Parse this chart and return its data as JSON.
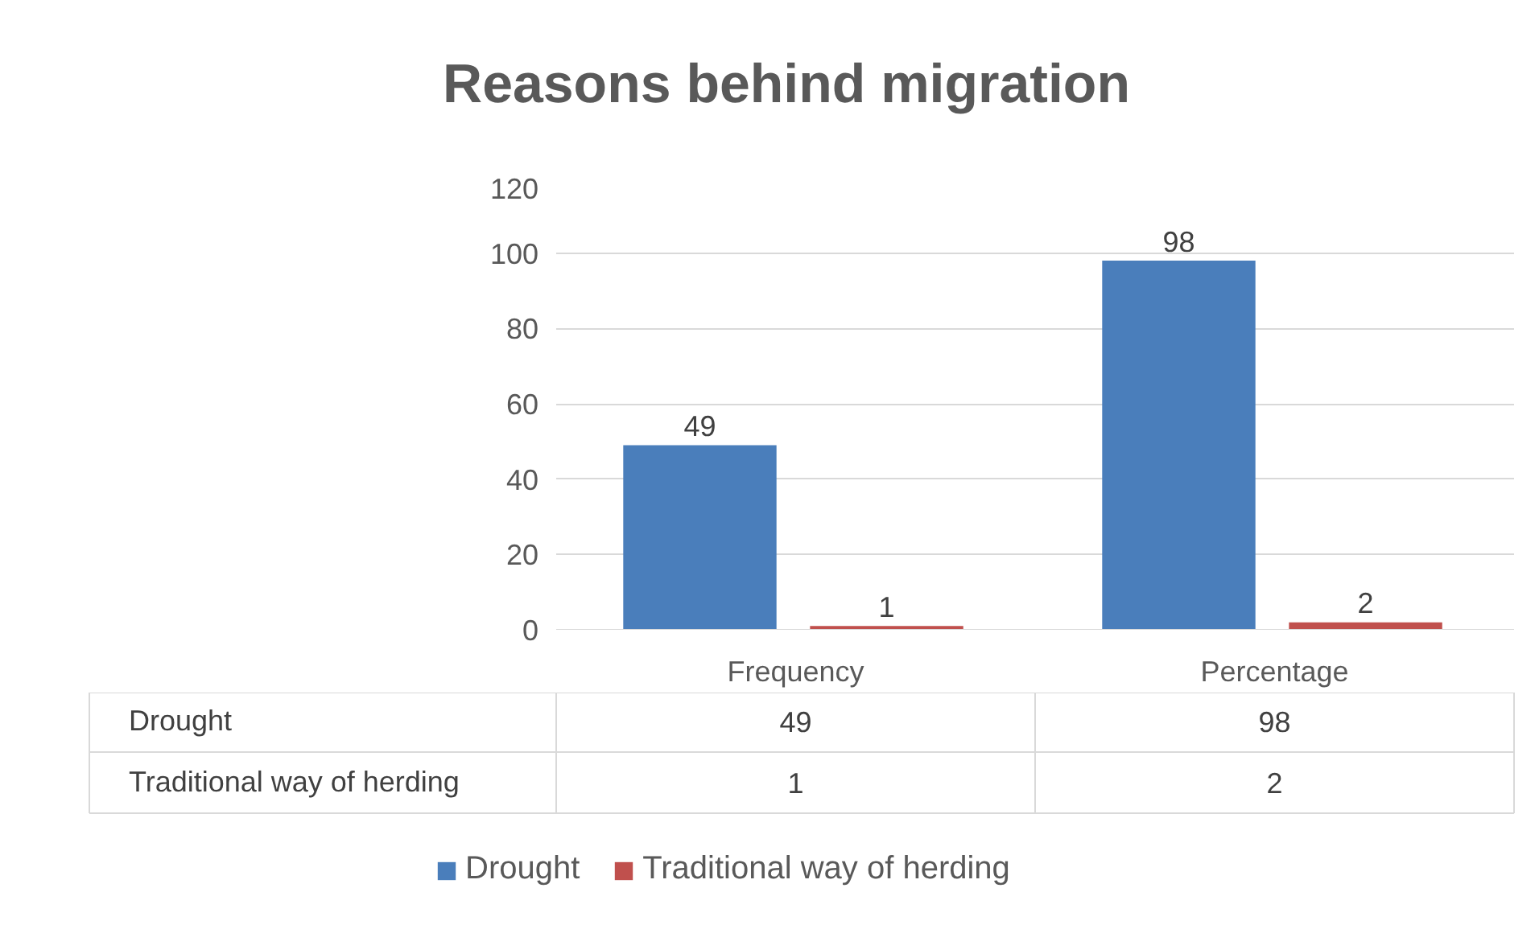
{
  "chart_data": {
    "type": "bar",
    "title": "Reasons behind migration",
    "categories": [
      "Frequency",
      "Percentage"
    ],
    "series": [
      {
        "name": "Drought",
        "color": "#4a7ebb",
        "values": [
          49,
          98
        ]
      },
      {
        "name": "Traditional way of herding",
        "color": "#c0504d",
        "values": [
          1,
          2
        ]
      }
    ],
    "annotations": [
      "49",
      "98",
      "1",
      "2"
    ],
    "ylim": [
      0,
      120
    ],
    "yticks": [
      0,
      20,
      40,
      60,
      80,
      100,
      120
    ],
    "grid": "y",
    "data_labels": true,
    "legend": "bottom"
  }
}
